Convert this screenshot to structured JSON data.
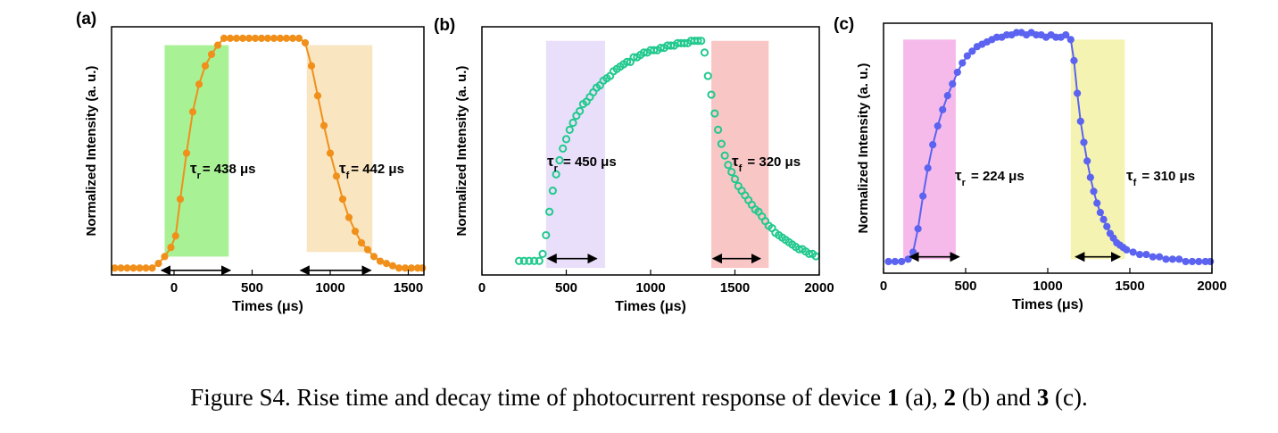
{
  "caption": {
    "prefix": "Figure S4. Rise time and decay time of photocurrent response of device ",
    "d1": "1",
    "p1": " (a), ",
    "d2": "2",
    "p2": " (b) and ",
    "d3": "3",
    "p3": " (c)."
  },
  "chart_data": [
    {
      "type": "scatter",
      "panel_label": "(a)",
      "xlabel": "Times (μs)",
      "ylabel": "Normalized Intensity (a. u.)",
      "xlim": [
        -400,
        1600
      ],
      "ylim": [
        -0.03,
        1.05
      ],
      "xticks": [
        0,
        500,
        1000,
        1500
      ],
      "y_tick_labels": false,
      "grid": false,
      "color": "#f0901a",
      "markers": true,
      "connecting_line": true,
      "series": [
        {
          "x": [
            -380,
            -340,
            -300,
            -260,
            -220,
            -180,
            -140,
            -100,
            -60,
            -20,
            10,
            40,
            80,
            120,
            160,
            200,
            240,
            280,
            320,
            360,
            400,
            440,
            480,
            520,
            560,
            600,
            640,
            680,
            720,
            760,
            800,
            840,
            880,
            920,
            960,
            1000,
            1040,
            1080,
            1120,
            1160,
            1200,
            1240,
            1280,
            1320,
            1360,
            1400,
            1440,
            1480,
            1520,
            1560,
            1590
          ],
          "y": [
            0,
            0,
            0,
            0,
            0,
            0,
            0,
            0.02,
            0.05,
            0.09,
            0.14,
            0.3,
            0.5,
            0.68,
            0.8,
            0.88,
            0.93,
            0.97,
            1,
            1,
            1,
            1,
            1,
            1,
            1,
            1,
            1,
            1,
            1,
            1,
            1,
            0.98,
            0.88,
            0.75,
            0.62,
            0.5,
            0.4,
            0.3,
            0.22,
            0.16,
            0.11,
            0.08,
            0.05,
            0.03,
            0.02,
            0.01,
            0,
            0,
            0,
            0,
            0
          ]
        }
      ],
      "shaded_regions": [
        {
          "x": [
            -60,
            350
          ],
          "y": [
            0.05,
            0.97
          ],
          "color": "#9ef08a"
        },
        {
          "x": [
            850,
            1270
          ],
          "y": [
            0.07,
            0.97
          ],
          "color": "#f8e2b8"
        }
      ],
      "annotations": [
        {
          "text": "τ",
          "subscript": "r",
          "value": "= 438 μs"
        },
        {
          "text": "τ",
          "subscript": "f",
          "value": "= 442 μs"
        }
      ],
      "arrows": [
        {
          "x": [
            -80,
            360
          ],
          "y": -0.01
        },
        {
          "x": [
            810,
            1260
          ],
          "y": -0.01
        }
      ]
    },
    {
      "type": "scatter",
      "panel_label": "(b)",
      "xlabel": "Times (μs)",
      "ylabel": "Normalized Intensity (a. u.)",
      "xlim": [
        0,
        2000
      ],
      "ylim": [
        -0.03,
        1.03
      ],
      "xticks": [
        0,
        500,
        1000,
        1500,
        2000
      ],
      "y_tick_labels": false,
      "grid": false,
      "color": "#22c98e",
      "markers": true,
      "connecting_line": false,
      "series": [
        {
          "x": [
            220,
            250,
            280,
            310,
            340,
            360,
            380,
            400,
            420,
            440,
            460,
            480,
            500,
            520,
            540,
            560,
            580,
            600,
            620,
            640,
            660,
            680,
            700,
            720,
            740,
            760,
            780,
            800,
            820,
            840,
            860,
            880,
            900,
            920,
            940,
            960,
            980,
            1000,
            1020,
            1040,
            1060,
            1080,
            1100,
            1120,
            1140,
            1160,
            1180,
            1200,
            1220,
            1240,
            1260,
            1280,
            1300,
            1320,
            1340,
            1360,
            1380,
            1400,
            1420,
            1440,
            1460,
            1480,
            1500,
            1520,
            1540,
            1560,
            1580,
            1600,
            1620,
            1640,
            1660,
            1680,
            1700,
            1720,
            1740,
            1760,
            1780,
            1800,
            1820,
            1840,
            1860,
            1880,
            1900,
            1920,
            1940,
            1960,
            1980
          ],
          "y": [
            0.03,
            0.03,
            0.03,
            0.03,
            0.03,
            0.06,
            0.14,
            0.24,
            0.33,
            0.4,
            0.46,
            0.51,
            0.55,
            0.59,
            0.62,
            0.65,
            0.67,
            0.7,
            0.71,
            0.73,
            0.75,
            0.77,
            0.78,
            0.8,
            0.81,
            0.82,
            0.84,
            0.85,
            0.86,
            0.87,
            0.88,
            0.88,
            0.9,
            0.9,
            0.91,
            0.92,
            0.92,
            0.93,
            0.93,
            0.93,
            0.94,
            0.94,
            0.95,
            0.95,
            0.95,
            0.96,
            0.96,
            0.96,
            0.96,
            0.97,
            0.97,
            0.97,
            0.97,
            0.92,
            0.82,
            0.74,
            0.66,
            0.59,
            0.53,
            0.48,
            0.44,
            0.41,
            0.38,
            0.35,
            0.33,
            0.31,
            0.29,
            0.27,
            0.25,
            0.24,
            0.22,
            0.2,
            0.18,
            0.17,
            0.15,
            0.14,
            0.13,
            0.12,
            0.11,
            0.1,
            0.09,
            0.08,
            0.08,
            0.07,
            0.06,
            0.06,
            0.05
          ]
        }
      ],
      "shaded_regions": [
        {
          "x": [
            380,
            730
          ],
          "y": [
            0,
            0.97
          ],
          "color": "#e7dcfa"
        },
        {
          "x": [
            1360,
            1700
          ],
          "y": [
            0,
            0.97
          ],
          "color": "#f8c0c0"
        }
      ],
      "annotations": [
        {
          "text": "τ",
          "subscript": "r",
          "value": " = 450 μs"
        },
        {
          "text": "τ",
          "subscript": "f",
          "value": " = 320 μs"
        }
      ],
      "arrows": [
        {
          "x": [
            390,
            680
          ],
          "y": 0.04
        },
        {
          "x": [
            1370,
            1650
          ],
          "y": 0.04
        }
      ]
    },
    {
      "type": "scatter",
      "panel_label": "(c)",
      "xlabel": "Times (μs)",
      "ylabel": "Normalized Intensity (a. u.)",
      "xlim": [
        0,
        2000
      ],
      "ylim": [
        -0.03,
        1.04
      ],
      "xticks": [
        0,
        500,
        1000,
        1500,
        2000
      ],
      "y_tick_labels": false,
      "grid": false,
      "color": "#5b63f0",
      "markers": true,
      "connecting_line": true,
      "series": [
        {
          "name": "",
          "x": [
            30,
            70,
            110,
            150,
            180,
            210,
            240,
            270,
            300,
            330,
            360,
            390,
            420,
            450,
            480,
            510,
            540,
            570,
            600,
            630,
            660,
            690,
            720,
            750,
            780,
            810,
            840,
            870,
            900,
            930,
            960,
            990,
            1020,
            1050,
            1080,
            1110,
            1140,
            1160,
            1180,
            1200,
            1220,
            1240,
            1260,
            1280,
            1300,
            1320,
            1340,
            1360,
            1380,
            1400,
            1420,
            1440,
            1460,
            1480,
            1520,
            1560,
            1600,
            1640,
            1680,
            1720,
            1760,
            1800,
            1840,
            1880,
            1920,
            1960,
            1990
          ],
          "y": [
            0.02,
            0.02,
            0.02,
            0.03,
            0.06,
            0.16,
            0.3,
            0.42,
            0.52,
            0.6,
            0.67,
            0.73,
            0.78,
            0.83,
            0.87,
            0.9,
            0.92,
            0.94,
            0.95,
            0.96,
            0.97,
            0.98,
            0.98,
            0.99,
            0.99,
            1,
            1,
            0.99,
            1,
            0.99,
            0.99,
            0.98,
            0.99,
            0.98,
            0.98,
            0.99,
            0.97,
            0.88,
            0.74,
            0.62,
            0.53,
            0.45,
            0.38,
            0.32,
            0.27,
            0.23,
            0.2,
            0.17,
            0.14,
            0.12,
            0.1,
            0.09,
            0.08,
            0.07,
            0.06,
            0.05,
            0.05,
            0.04,
            0.04,
            0.03,
            0.03,
            0.03,
            0.02,
            0.02,
            0.02,
            0.02,
            0.02
          ]
        }
      ],
      "shaded_regions": [
        {
          "x": [
            120,
            440
          ],
          "y": [
            0.03,
            0.97
          ],
          "color": "#f4b2e8"
        },
        {
          "x": [
            1140,
            1470
          ],
          "y": [
            0.03,
            0.97
          ],
          "color": "#f4f2a8"
        }
      ],
      "annotations": [
        {
          "text": "τ",
          "subscript": "r",
          "value": " = 224 μs"
        },
        {
          "text": "τ",
          "subscript": "f",
          "value": " = 310 μs"
        }
      ],
      "arrows": [
        {
          "x": [
            160,
            460
          ],
          "y": 0.04
        },
        {
          "x": [
            1170,
            1440
          ],
          "y": 0.04
        }
      ]
    }
  ]
}
